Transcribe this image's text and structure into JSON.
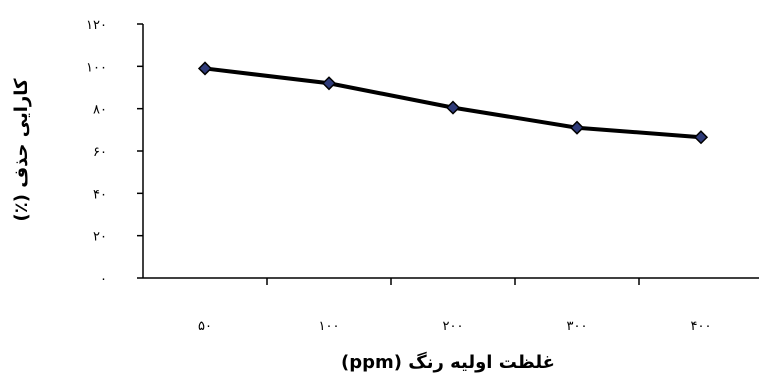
{
  "chart_data": {
    "type": "line",
    "x": [
      "۵۰",
      "۱۰۰",
      "۲۰۰",
      "۳۰۰",
      "۴۰۰"
    ],
    "series": [
      {
        "values": [
          99,
          92,
          80.5,
          71,
          66.5
        ],
        "color": "#000000",
        "marker_color": "#2e3a78"
      }
    ],
    "xlabel": "غلظت اولیه رنگ (ppm)",
    "ylabel": "کارایی حذف (٪)",
    "ylim": [
      0,
      120
    ],
    "yticks": [
      0,
      20,
      40,
      60,
      80,
      100,
      120
    ],
    "ytick_labels": [
      "۰",
      "۲۰",
      "۴۰",
      "۶۰",
      "۸۰",
      "۱۰۰",
      "۱۲۰"
    ],
    "grid": false,
    "legend": "none"
  }
}
